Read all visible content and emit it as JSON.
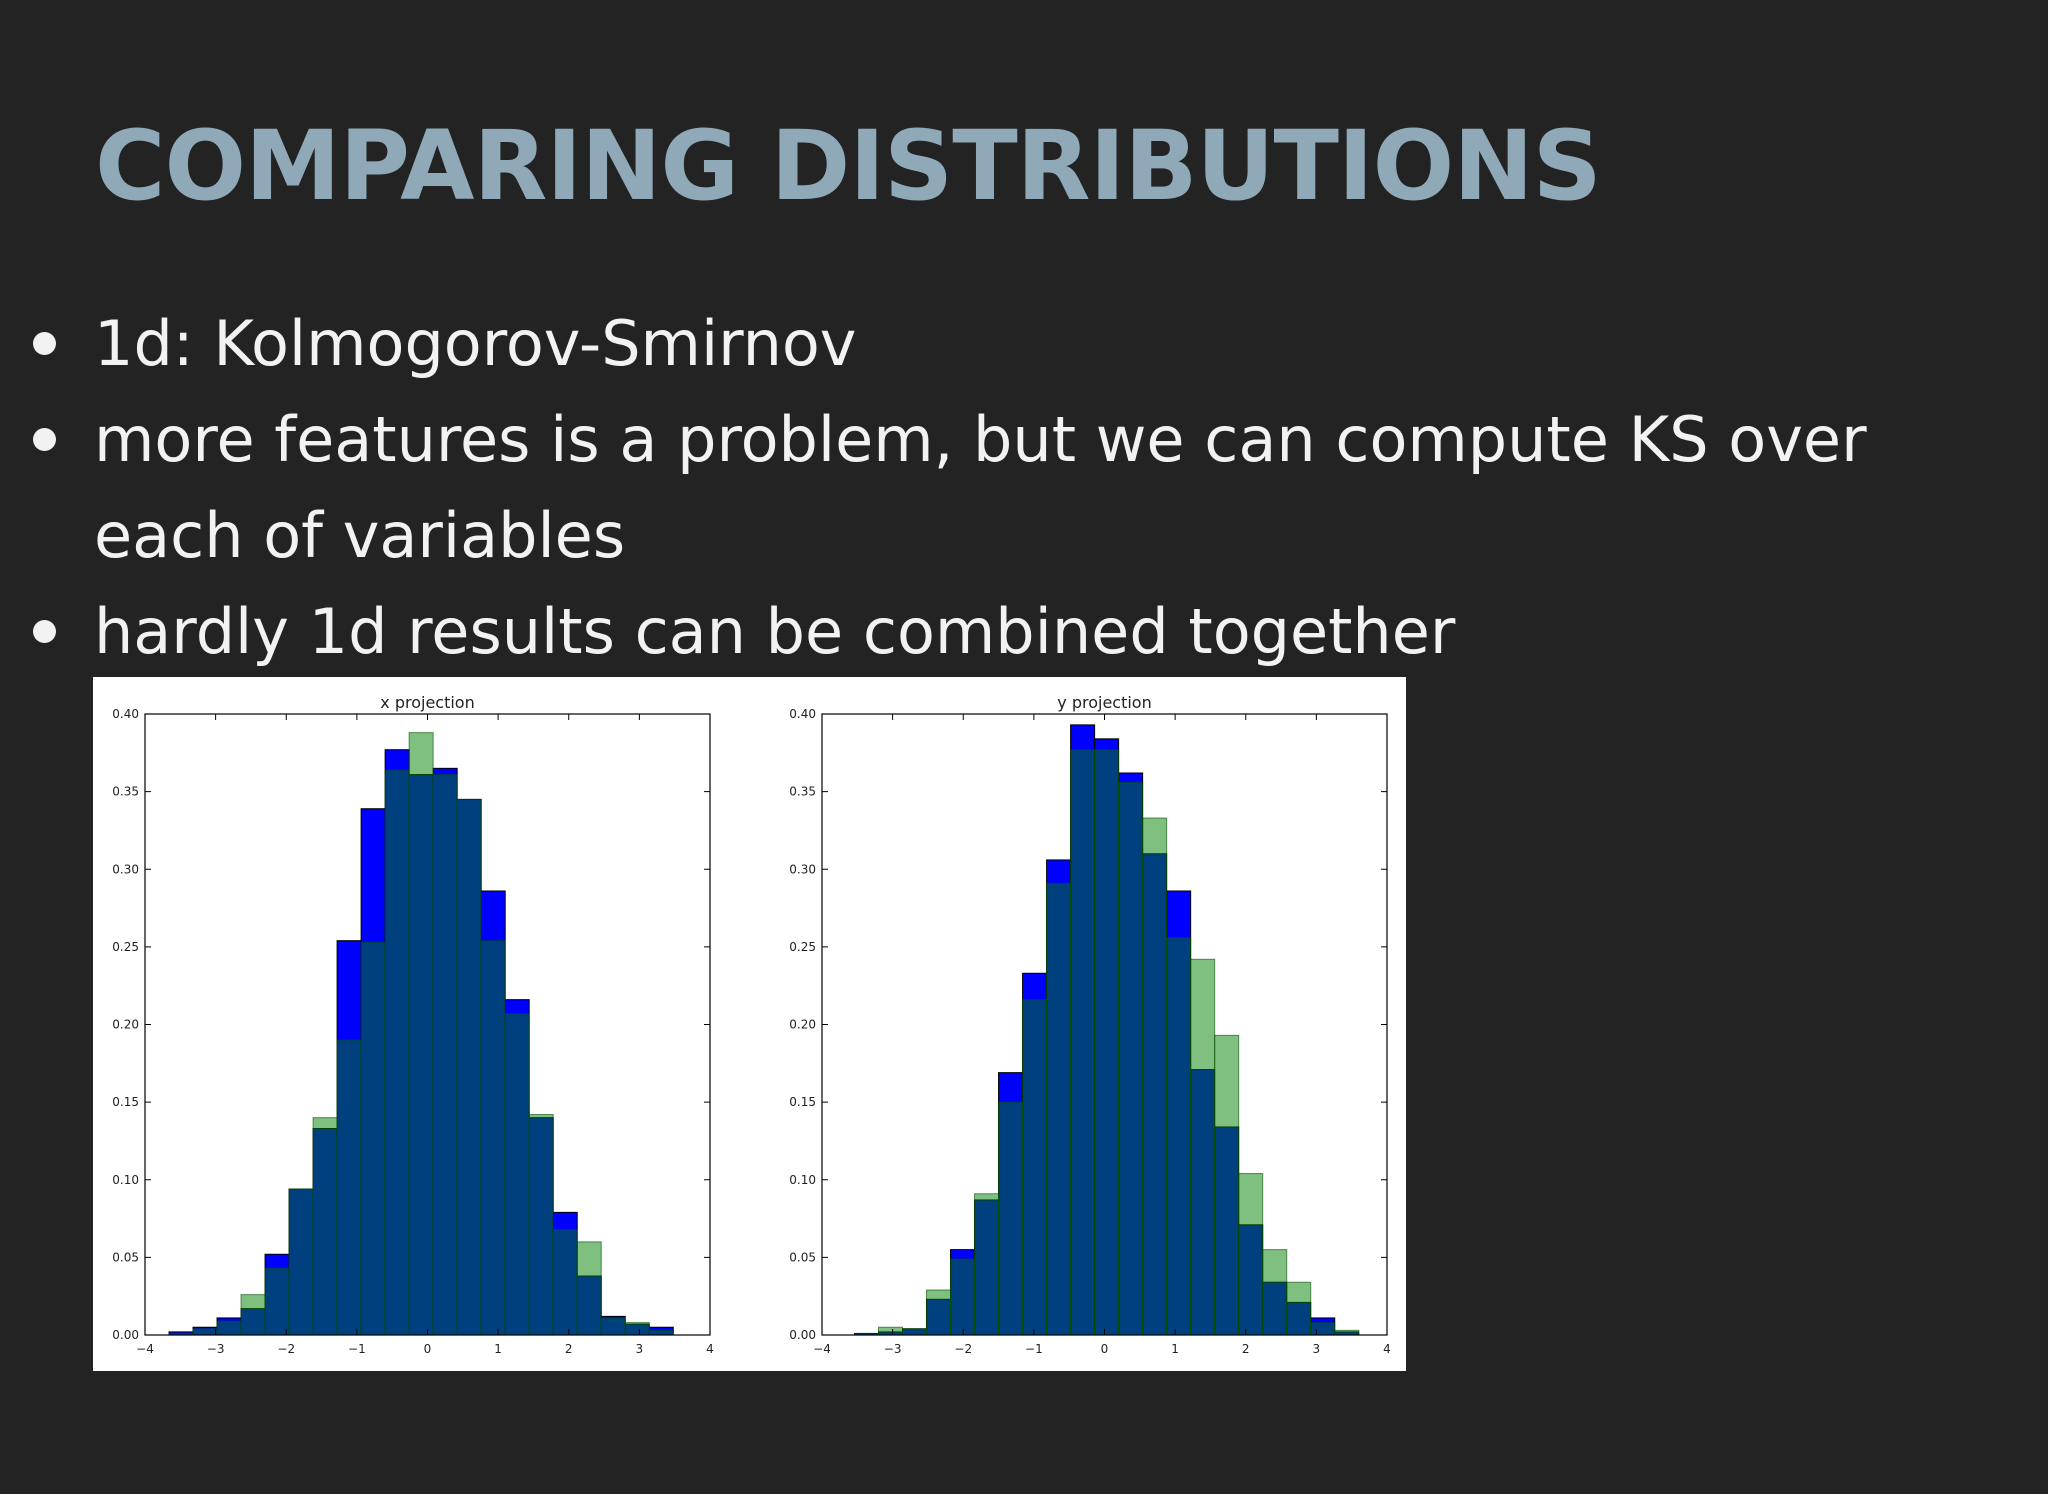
{
  "slide": {
    "title": "COMPARING DISTRIBUTIONS",
    "bullets": [
      "1d: Kolmogorov-Smirnov",
      "more features is a problem, but we can compute KS over each of variables",
      "hardly 1d results can be combined together"
    ]
  },
  "colors": {
    "background": "#232323",
    "title": "#8fa9b8",
    "text": "#f2f2f2",
    "series_blue": "#0000ff",
    "series_green": "#008000",
    "overlap": "#00478a"
  },
  "chart_data": [
    {
      "type": "bar",
      "title": "x projection",
      "xlabel": "",
      "ylabel": "",
      "xlim": [
        -4,
        4
      ],
      "ylim": [
        0,
        0.4
      ],
      "xticks": [
        "−4",
        "−3",
        "−2",
        "−1",
        "0",
        "1",
        "2",
        "3",
        "4"
      ],
      "yticks": [
        "0.00",
        "0.05",
        "0.10",
        "0.15",
        "0.20",
        "0.25",
        "0.30",
        "0.35",
        "0.40"
      ],
      "bin_width": 0.34,
      "series": [
        {
          "color": "blue",
          "bins": [
            [
              -3.66,
              0.002
            ],
            [
              -3.32,
              0.005
            ],
            [
              -2.98,
              0.011
            ],
            [
              -2.64,
              0.017
            ],
            [
              -2.3,
              0.052
            ],
            [
              -1.96,
              0.094
            ],
            [
              -1.62,
              0.133
            ],
            [
              -1.28,
              0.254
            ],
            [
              -0.94,
              0.339
            ],
            [
              -0.6,
              0.377
            ],
            [
              -0.26,
              0.361
            ],
            [
              0.08,
              0.365
            ],
            [
              0.42,
              0.345
            ],
            [
              0.76,
              0.286
            ],
            [
              1.1,
              0.216
            ],
            [
              1.44,
              0.14
            ],
            [
              1.78,
              0.079
            ],
            [
              2.12,
              0.038
            ],
            [
              2.46,
              0.012
            ],
            [
              2.8,
              0.007
            ],
            [
              3.14,
              0.005
            ]
          ]
        },
        {
          "color": "green",
          "bins": [
            [
              -3.66,
              0.001
            ],
            [
              -3.32,
              0.004
            ],
            [
              -2.98,
              0.009
            ],
            [
              -2.64,
              0.026
            ],
            [
              -2.3,
              0.043
            ],
            [
              -1.96,
              0.094
            ],
            [
              -1.62,
              0.14
            ],
            [
              -1.28,
              0.19
            ],
            [
              -0.94,
              0.253
            ],
            [
              -0.6,
              0.364
            ],
            [
              -0.26,
              0.388
            ],
            [
              0.08,
              0.361
            ],
            [
              0.42,
              0.345
            ],
            [
              0.76,
              0.254
            ],
            [
              1.1,
              0.207
            ],
            [
              1.44,
              0.142
            ],
            [
              1.78,
              0.068
            ],
            [
              2.12,
              0.06
            ],
            [
              2.46,
              0.011
            ],
            [
              2.8,
              0.008
            ],
            [
              3.14,
              0.003
            ]
          ]
        }
      ]
    },
    {
      "type": "bar",
      "title": "y projection",
      "xlabel": "",
      "ylabel": "",
      "xlim": [
        -4,
        4
      ],
      "ylim": [
        0,
        0.4
      ],
      "xticks": [
        "−4",
        "−3",
        "−2",
        "−1",
        "0",
        "1",
        "2",
        "3",
        "4"
      ],
      "yticks": [
        "0.00",
        "0.05",
        "0.10",
        "0.15",
        "0.20",
        "0.25",
        "0.30",
        "0.35",
        "0.40"
      ],
      "bin_width": 0.34,
      "series": [
        {
          "color": "blue",
          "bins": [
            [
              -3.54,
              0.001
            ],
            [
              -3.2,
              0.002
            ],
            [
              -2.86,
              0.004
            ],
            [
              -2.52,
              0.023
            ],
            [
              -2.18,
              0.055
            ],
            [
              -1.84,
              0.087
            ],
            [
              -1.5,
              0.169
            ],
            [
              -1.16,
              0.233
            ],
            [
              -0.82,
              0.306
            ],
            [
              -0.48,
              0.393
            ],
            [
              -0.14,
              0.384
            ],
            [
              0.2,
              0.362
            ],
            [
              0.54,
              0.31
            ],
            [
              0.88,
              0.286
            ],
            [
              1.22,
              0.171
            ],
            [
              1.56,
              0.134
            ],
            [
              1.9,
              0.071
            ],
            [
              2.24,
              0.034
            ],
            [
              2.58,
              0.021
            ],
            [
              2.92,
              0.011
            ],
            [
              3.26,
              0.002
            ]
          ]
        },
        {
          "color": "green",
          "bins": [
            [
              -3.54,
              0.001
            ],
            [
              -3.2,
              0.005
            ],
            [
              -2.86,
              0.004
            ],
            [
              -2.52,
              0.029
            ],
            [
              -2.18,
              0.049
            ],
            [
              -1.84,
              0.091
            ],
            [
              -1.5,
              0.15
            ],
            [
              -1.16,
              0.216
            ],
            [
              -0.82,
              0.291
            ],
            [
              -0.48,
              0.377
            ],
            [
              -0.14,
              0.377
            ],
            [
              0.2,
              0.356
            ],
            [
              0.54,
              0.333
            ],
            [
              0.88,
              0.256
            ],
            [
              1.22,
              0.242
            ],
            [
              1.56,
              0.193
            ],
            [
              1.9,
              0.104
            ],
            [
              2.24,
              0.055
            ],
            [
              2.58,
              0.034
            ],
            [
              2.92,
              0.008
            ],
            [
              3.26,
              0.003
            ]
          ]
        }
      ]
    }
  ]
}
